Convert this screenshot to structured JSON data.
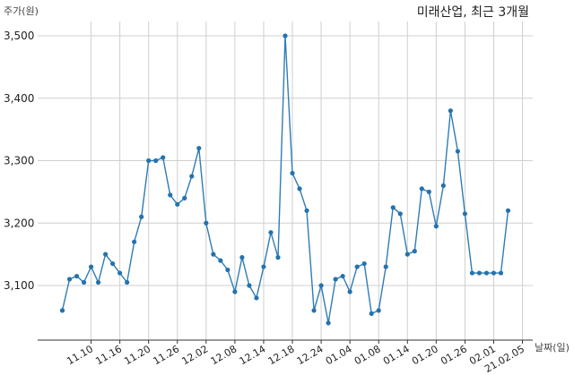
{
  "chart_data": {
    "type": "line",
    "title": "미래산업, 최근 3개월",
    "ylabel": "주가(원)",
    "xlabel": "날짜(일)",
    "ylim": [
      3030,
      3510
    ],
    "yticks": [
      3100,
      3200,
      3300,
      3400,
      3500
    ],
    "ytick_labels": [
      "3,100",
      "3,200",
      "3,300",
      "3,400",
      "3,500"
    ],
    "xtick_indices": [
      4,
      8,
      12,
      16,
      20,
      24,
      28,
      32,
      36,
      40,
      44,
      48,
      52,
      56,
      60,
      64
    ],
    "xtick_labels": [
      "11.10",
      "11.16",
      "11.20",
      "11.26",
      "12.02",
      "12.08",
      "12.14",
      "12.18",
      "12.24",
      "01.04",
      "01.08",
      "01.14",
      "01.20",
      "01.26",
      "02.01",
      "21.02.05"
    ],
    "grid": true,
    "series": [
      {
        "color": "#2e7db5",
        "values": [
          3060,
          3110,
          3115,
          3105,
          3130,
          3105,
          3150,
          3135,
          3120,
          3105,
          3170,
          3210,
          3300,
          3300,
          3305,
          3245,
          3230,
          3240,
          3275,
          3320,
          3200,
          3150,
          3140,
          3125,
          3090,
          3145,
          3100,
          3080,
          3130,
          3185,
          3145,
          3500,
          3280,
          3255,
          3220,
          3060,
          3100,
          3040,
          3110,
          3115,
          3090,
          3130,
          3135,
          3055,
          3060,
          3130,
          3225,
          3215,
          3150,
          3155,
          3255,
          3250,
          3195,
          3260,
          3380,
          3315,
          3215,
          3120,
          3120,
          3120,
          3120,
          3120,
          3220
        ]
      }
    ]
  }
}
